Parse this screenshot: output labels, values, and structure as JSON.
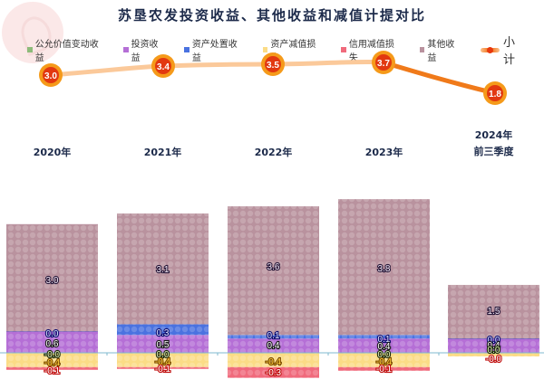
{
  "title": "苏垦农发投资收益、其他收益和减值计提对比",
  "legend": [
    {
      "label": "公允价值变动收益",
      "color": "#8dbb7a"
    },
    {
      "label": "投资收益",
      "color": "#b56fd6"
    },
    {
      "label": "资产处置收益",
      "color": "#4a72e0"
    },
    {
      "label": "资产减值损失",
      "color": "#fbdc86"
    },
    {
      "label": "信用减值损失",
      "color": "#f06a7c"
    },
    {
      "label": "其他收益",
      "color": "#b9929e"
    }
  ],
  "legend_total_label": "小计",
  "categories": [
    "2020年",
    "2021年",
    "2022年",
    "2023年",
    "2024年\n前三季度"
  ],
  "category_lines": [
    [
      "2020年"
    ],
    [
      "2021年"
    ],
    [
      "2022年"
    ],
    [
      "2023年"
    ],
    [
      "2024年",
      "前三季度"
    ]
  ],
  "chart_data": {
    "type": "bar",
    "subtype": "stacked bar with total line",
    "title": "苏垦农发投资收益、其他收益和减值计提对比",
    "categories": [
      "2020年",
      "2021年",
      "2022年",
      "2023年",
      "2024年前三季度"
    ],
    "series": [
      {
        "name": "公允价值变动收益",
        "values": [
          0.0,
          0.0,
          0.0,
          0.0,
          0.0
        ],
        "color": "#8dbb7a"
      },
      {
        "name": "投资收益",
        "values": [
          0.6,
          0.5,
          0.4,
          0.4,
          0.4
        ],
        "color": "#b56fd6"
      },
      {
        "name": "资产处置收益",
        "values": [
          0.0,
          0.3,
          0.1,
          0.1,
          0.0
        ],
        "color": "#4a72e0"
      },
      {
        "name": "资产减值损失",
        "values": [
          -0.4,
          -0.4,
          -0.4,
          -0.4,
          -0.1
        ],
        "color": "#fbdc86"
      },
      {
        "name": "信用减值损失",
        "values": [
          -0.1,
          -0.1,
          -0.3,
          -0.1,
          -0.0
        ],
        "color": "#f06a7c"
      },
      {
        "name": "其他收益",
        "values": [
          3.0,
          3.1,
          3.6,
          3.8,
          1.5
        ],
        "color": "#b9929e"
      }
    ],
    "total_line": {
      "name": "小计",
      "values": [
        3.0,
        3.4,
        3.5,
        3.7,
        1.8
      ],
      "color": "#f07a1a"
    },
    "xlabel": "",
    "ylabel": "",
    "legend_position": "top",
    "grid": false
  }
}
